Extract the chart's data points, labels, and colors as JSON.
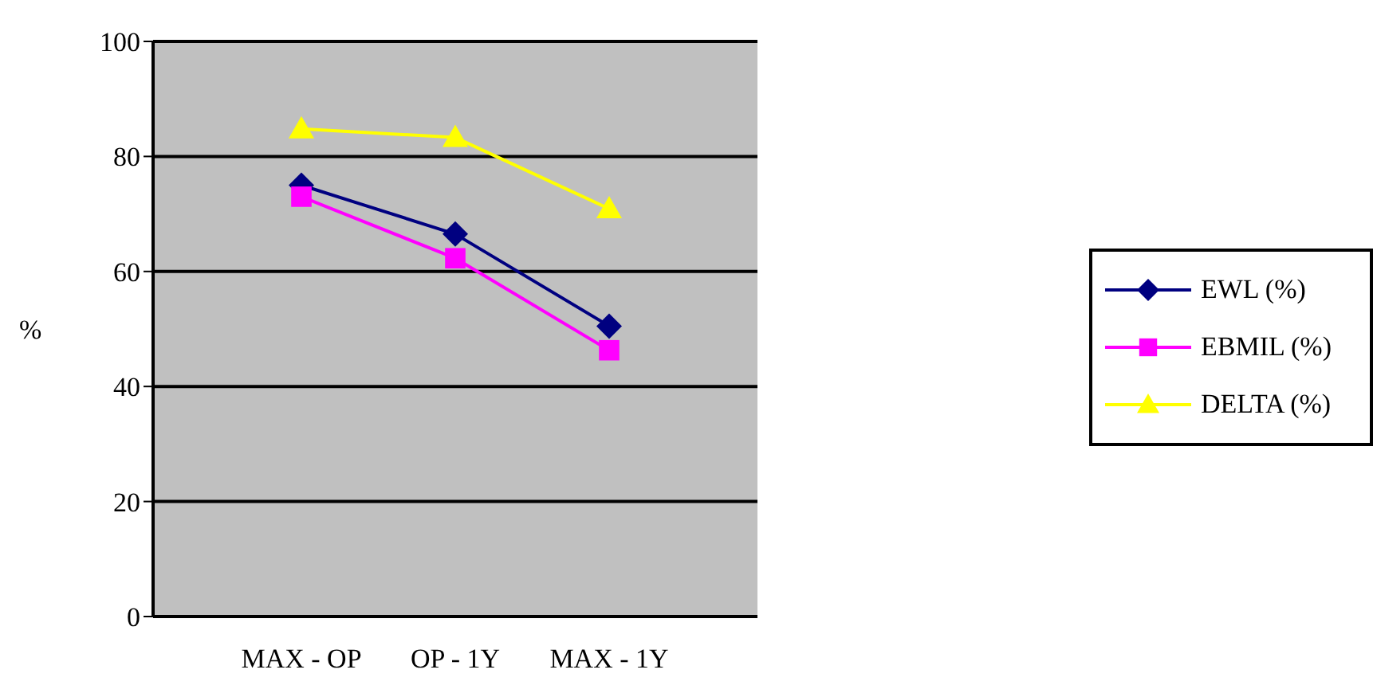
{
  "chart_data": {
    "type": "line",
    "ylabel": "%",
    "categories": [
      "MAX - OP",
      "OP - 1Y",
      "MAX - 1Y"
    ],
    "series": [
      {
        "name": "EWL (%)",
        "color": "#000080",
        "marker": "diamond",
        "values": [
          75,
          66.5,
          50.5
        ]
      },
      {
        "name": "EBMIL (%)",
        "color": "#ff00ff",
        "marker": "square",
        "values": [
          73,
          62.3,
          46.3
        ]
      },
      {
        "name": "DELTA (%)",
        "color": "#ffff00",
        "marker": "triangle",
        "values": [
          84.8,
          83.3,
          70.9
        ]
      }
    ],
    "ylim": [
      0,
      100
    ],
    "yticks": [
      0,
      20,
      40,
      60,
      80,
      100
    ],
    "grid": "y",
    "legend": "right",
    "line_style": "solid"
  }
}
